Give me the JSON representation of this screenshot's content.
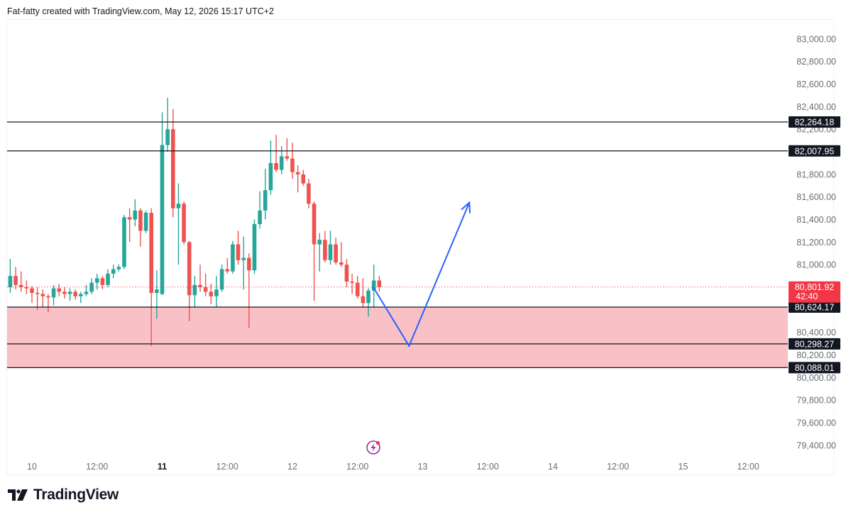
{
  "header": {
    "caption": "Fat-fatty created with TradingView.com, May 12, 2026 15:17 UTC+2"
  },
  "brand": {
    "name": "TradingView",
    "icon": "tradingview-logo-icon"
  },
  "colors": {
    "up": "#26a69a",
    "down": "#ef5350",
    "zone_fill": "#f9c0c6",
    "level_line": "#131722",
    "projection": "#2962ff",
    "current_badge": "#f23645",
    "level_badge": "#131722",
    "event_icon": "#9c27b0"
  },
  "chart_data": {
    "type": "candlestick",
    "y_ticks": [
      {
        "value": 83000,
        "label": "83,000.00"
      },
      {
        "value": 82800,
        "label": "82,800.00"
      },
      {
        "value": 82600,
        "label": "82,600.00"
      },
      {
        "value": 82400,
        "label": "82,400.00"
      },
      {
        "value": 82200,
        "label": "82,200.00"
      },
      {
        "value": 82000,
        "label": "82,000.00"
      },
      {
        "value": 81800,
        "label": "81,800.00"
      },
      {
        "value": 81600,
        "label": "81,600.00"
      },
      {
        "value": 81400,
        "label": "81,400.00"
      },
      {
        "value": 81200,
        "label": "81,200.00"
      },
      {
        "value": 81000,
        "label": "81,000.00"
      },
      {
        "value": 80800,
        "label": "80,800.00"
      },
      {
        "value": 80600,
        "label": "80,600.00"
      },
      {
        "value": 80400,
        "label": "80,400.00"
      },
      {
        "value": 80200,
        "label": "80,200.00"
      },
      {
        "value": 80000,
        "label": "80,000.00"
      },
      {
        "value": 79800,
        "label": "79,800.00"
      },
      {
        "value": 79600,
        "label": "79,600.00"
      },
      {
        "value": 79400,
        "label": "79,400.00"
      }
    ],
    "x_ticks": [
      {
        "label": "10",
        "bold": false,
        "t": 0
      },
      {
        "label": "12:00",
        "bold": false,
        "t": 12
      },
      {
        "label": "11",
        "bold": true,
        "t": 24
      },
      {
        "label": "12:00",
        "bold": false,
        "t": 36
      },
      {
        "label": "12",
        "bold": false,
        "t": 48
      },
      {
        "label": "12:00",
        "bold": false,
        "t": 60
      },
      {
        "label": "13",
        "bold": false,
        "t": 72
      },
      {
        "label": "12:00",
        "bold": false,
        "t": 84
      },
      {
        "label": "14",
        "bold": false,
        "t": 96
      },
      {
        "label": "12:00",
        "bold": false,
        "t": 108
      },
      {
        "label": "15",
        "bold": false,
        "t": 120
      },
      {
        "label": "12:00",
        "bold": false,
        "t": 132
      }
    ],
    "horizontal_levels": [
      {
        "value": 82264.18,
        "label": "82,264.18"
      },
      {
        "value": 82007.95,
        "label": "82,007.95"
      },
      {
        "value": 80624.17,
        "label": "80,624.17"
      },
      {
        "value": 80298.27,
        "label": "80,298.27"
      },
      {
        "value": 80088.01,
        "label": "80,088.01"
      }
    ],
    "zone": {
      "top": 80624.17,
      "bottom": 80088.01
    },
    "current_price": {
      "value": 80801.92,
      "label": "80,801.92",
      "countdown": "42:40"
    },
    "projection_path": [
      {
        "t": 62.9,
        "price": 80800
      },
      {
        "t": 69.5,
        "price": 80280
      },
      {
        "t": 80.6,
        "price": 81550
      }
    ],
    "candles": [
      {
        "t": -4,
        "o": 80800,
        "h": 81050,
        "l": 80750,
        "c": 80900
      },
      {
        "t": -3,
        "o": 80900,
        "h": 80980,
        "l": 80780,
        "c": 80820
      },
      {
        "t": -2,
        "o": 80820,
        "h": 80940,
        "l": 80760,
        "c": 80800
      },
      {
        "t": -1,
        "o": 80800,
        "h": 80860,
        "l": 80740,
        "c": 80790
      },
      {
        "t": 0,
        "o": 80790,
        "h": 80810,
        "l": 80660,
        "c": 80750
      },
      {
        "t": 1,
        "o": 80750,
        "h": 80800,
        "l": 80600,
        "c": 80740
      },
      {
        "t": 2,
        "o": 80740,
        "h": 80780,
        "l": 80620,
        "c": 80720
      },
      {
        "t": 3,
        "o": 80720,
        "h": 80740,
        "l": 80580,
        "c": 80710
      },
      {
        "t": 4,
        "o": 80710,
        "h": 80820,
        "l": 80640,
        "c": 80790
      },
      {
        "t": 5,
        "o": 80790,
        "h": 80830,
        "l": 80720,
        "c": 80760
      },
      {
        "t": 6,
        "o": 80760,
        "h": 80800,
        "l": 80700,
        "c": 80740
      },
      {
        "t": 7,
        "o": 80740,
        "h": 80790,
        "l": 80680,
        "c": 80760
      },
      {
        "t": 8,
        "o": 80760,
        "h": 80780,
        "l": 80690,
        "c": 80720
      },
      {
        "t": 9,
        "o": 80720,
        "h": 80760,
        "l": 80660,
        "c": 80740
      },
      {
        "t": 10,
        "o": 80740,
        "h": 80820,
        "l": 80720,
        "c": 80760
      },
      {
        "t": 11,
        "o": 80760,
        "h": 80880,
        "l": 80740,
        "c": 80840
      },
      {
        "t": 12,
        "o": 80840,
        "h": 80920,
        "l": 80780,
        "c": 80880
      },
      {
        "t": 13,
        "o": 80880,
        "h": 80900,
        "l": 80780,
        "c": 80820
      },
      {
        "t": 14,
        "o": 80820,
        "h": 80960,
        "l": 80800,
        "c": 80920
      },
      {
        "t": 15,
        "o": 80920,
        "h": 81000,
        "l": 80880,
        "c": 80960
      },
      {
        "t": 16,
        "o": 80960,
        "h": 81000,
        "l": 80940,
        "c": 80980
      },
      {
        "t": 17,
        "o": 80980,
        "h": 81440,
        "l": 80960,
        "c": 81420
      },
      {
        "t": 18,
        "o": 81420,
        "h": 81500,
        "l": 81200,
        "c": 81400
      },
      {
        "t": 19,
        "o": 81400,
        "h": 81580,
        "l": 81340,
        "c": 81480
      },
      {
        "t": 20,
        "o": 81480,
        "h": 81500,
        "l": 81160,
        "c": 81300
      },
      {
        "t": 21,
        "o": 81300,
        "h": 81480,
        "l": 81280,
        "c": 81460
      },
      {
        "t": 22,
        "o": 81460,
        "h": 81500,
        "l": 80280,
        "c": 80750
      },
      {
        "t": 23,
        "o": 80750,
        "h": 80950,
        "l": 80520,
        "c": 80780
      },
      {
        "t": 24,
        "o": 80740,
        "h": 82350,
        "l": 80730,
        "c": 82060
      },
      {
        "t": 25,
        "o": 82060,
        "h": 82480,
        "l": 82000,
        "c": 82200
      },
      {
        "t": 26,
        "o": 82200,
        "h": 82380,
        "l": 81420,
        "c": 81500
      },
      {
        "t": 27,
        "o": 81500,
        "h": 81720,
        "l": 81000,
        "c": 81540
      },
      {
        "t": 28,
        "o": 81540,
        "h": 81560,
        "l": 81180,
        "c": 81200
      },
      {
        "t": 29,
        "o": 81200,
        "h": 81210,
        "l": 80500,
        "c": 80730
      },
      {
        "t": 30,
        "o": 80730,
        "h": 80900,
        "l": 80620,
        "c": 80820
      },
      {
        "t": 31,
        "o": 80820,
        "h": 81000,
        "l": 80760,
        "c": 80800
      },
      {
        "t": 32,
        "o": 80800,
        "h": 80920,
        "l": 80720,
        "c": 80760
      },
      {
        "t": 33,
        "o": 80760,
        "h": 80830,
        "l": 80650,
        "c": 80720
      },
      {
        "t": 34,
        "o": 80720,
        "h": 80900,
        "l": 80620,
        "c": 80780
      },
      {
        "t": 35,
        "o": 80780,
        "h": 81000,
        "l": 80760,
        "c": 80960
      },
      {
        "t": 36,
        "o": 80960,
        "h": 81060,
        "l": 80920,
        "c": 80940
      },
      {
        "t": 37,
        "o": 80940,
        "h": 81210,
        "l": 80920,
        "c": 81180
      },
      {
        "t": 38,
        "o": 81180,
        "h": 81300,
        "l": 81000,
        "c": 81040
      },
      {
        "t": 39,
        "o": 81040,
        "h": 81250,
        "l": 80780,
        "c": 81060
      },
      {
        "t": 40,
        "o": 81060,
        "h": 81100,
        "l": 80440,
        "c": 80950
      },
      {
        "t": 41,
        "o": 80950,
        "h": 81400,
        "l": 80920,
        "c": 81360
      },
      {
        "t": 42,
        "o": 81360,
        "h": 81650,
        "l": 81320,
        "c": 81480
      },
      {
        "t": 43,
        "o": 81480,
        "h": 81850,
        "l": 81400,
        "c": 81660
      },
      {
        "t": 44,
        "o": 81660,
        "h": 82100,
        "l": 81620,
        "c": 81900
      },
      {
        "t": 45,
        "o": 81900,
        "h": 82150,
        "l": 81820,
        "c": 81840
      },
      {
        "t": 46,
        "o": 81840,
        "h": 82050,
        "l": 81800,
        "c": 81960
      },
      {
        "t": 47,
        "o": 81960,
        "h": 82120,
        "l": 81920,
        "c": 81940
      },
      {
        "t": 48,
        "o": 81940,
        "h": 82080,
        "l": 81760,
        "c": 81820
      },
      {
        "t": 49,
        "o": 81820,
        "h": 81880,
        "l": 81640,
        "c": 81800
      },
      {
        "t": 50,
        "o": 81800,
        "h": 81840,
        "l": 81700,
        "c": 81720
      },
      {
        "t": 51,
        "o": 81720,
        "h": 81760,
        "l": 81500,
        "c": 81540
      },
      {
        "t": 52,
        "o": 81540,
        "h": 81560,
        "l": 80680,
        "c": 81180
      },
      {
        "t": 53,
        "o": 81180,
        "h": 81280,
        "l": 80940,
        "c": 81220
      },
      {
        "t": 54,
        "o": 81220,
        "h": 81300,
        "l": 81020,
        "c": 81040
      },
      {
        "t": 55,
        "o": 81040,
        "h": 81300,
        "l": 81000,
        "c": 81180
      },
      {
        "t": 56,
        "o": 81180,
        "h": 81240,
        "l": 81000,
        "c": 81020
      },
      {
        "t": 57,
        "o": 81020,
        "h": 81200,
        "l": 80980,
        "c": 81000
      },
      {
        "t": 58,
        "o": 81000,
        "h": 81050,
        "l": 80800,
        "c": 80850
      },
      {
        "t": 59,
        "o": 80850,
        "h": 80920,
        "l": 80740,
        "c": 80840
      },
      {
        "t": 60,
        "o": 80840,
        "h": 80900,
        "l": 80700,
        "c": 80720
      },
      {
        "t": 61,
        "o": 80720,
        "h": 80880,
        "l": 80620,
        "c": 80660
      },
      {
        "t": 62,
        "o": 80660,
        "h": 80790,
        "l": 80540,
        "c": 80770
      },
      {
        "t": 63,
        "o": 80770,
        "h": 81000,
        "l": 80620,
        "c": 80860
      },
      {
        "t": 64,
        "o": 80860,
        "h": 80900,
        "l": 80760,
        "c": 80802
      }
    ]
  }
}
